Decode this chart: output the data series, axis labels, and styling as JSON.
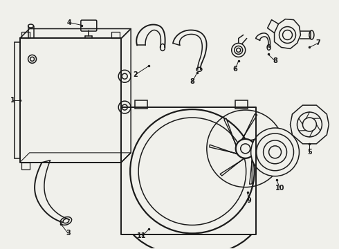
{
  "background_color": "#f0f0eb",
  "line_color": "#1a1a1a",
  "line_width": 1.1,
  "fig_width": 4.9,
  "fig_height": 3.6,
  "dpi": 100
}
